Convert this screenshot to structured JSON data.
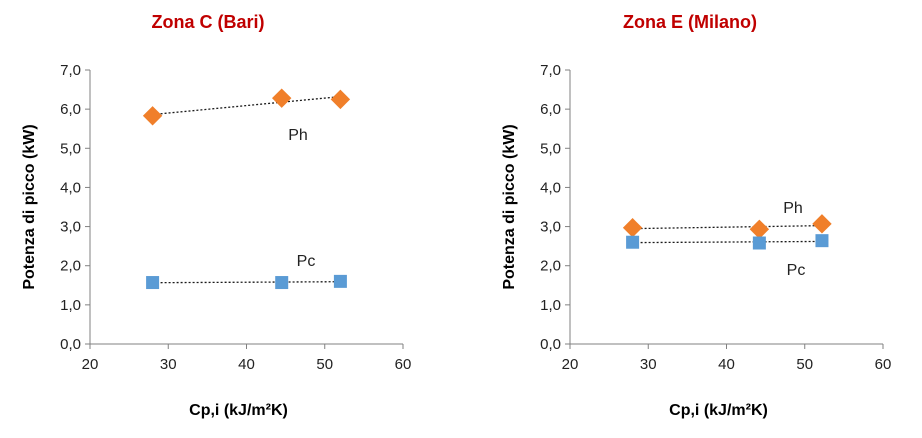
{
  "chart_data": [
    {
      "type": "scatter",
      "title": "Zona C (Bari)",
      "xlabel": "Cp,i  (kJ/m²K)",
      "ylabel": "Potenza di picco (kW)",
      "xlim": [
        20,
        60
      ],
      "ylim": [
        0,
        7
      ],
      "x_ticks": [
        "20",
        "30",
        "40",
        "50",
        "60"
      ],
      "y_ticks": [
        "0,0",
        "1,0",
        "2,0",
        "3,0",
        "4,0",
        "5,0",
        "6,0",
        "7,0"
      ],
      "grid": false,
      "trendline": "linear",
      "series": [
        {
          "name": "Ph",
          "marker": "diamond",
          "color": "#f07f2a",
          "points": [
            {
              "x": 28,
              "y": 5.83
            },
            {
              "x": 44.5,
              "y": 6.28
            },
            {
              "x": 52,
              "y": 6.25
            }
          ]
        },
        {
          "name": "Pc",
          "marker": "square",
          "color": "#5a9bd5",
          "points": [
            {
              "x": 28,
              "y": 1.57
            },
            {
              "x": 44.5,
              "y": 1.57
            },
            {
              "x": 52,
              "y": 1.6
            }
          ]
        }
      ]
    },
    {
      "type": "scatter",
      "title": "Zona E (Milano)",
      "xlabel": "Cp,i  (kJ/m²K)",
      "ylabel": "Potenza di picco (kW)",
      "xlim": [
        20,
        60
      ],
      "ylim": [
        0,
        7
      ],
      "x_ticks": [
        "20",
        "30",
        "40",
        "50",
        "60"
      ],
      "y_ticks": [
        "0,0",
        "1,0",
        "2,0",
        "3,0",
        "4,0",
        "5,0",
        "6,0",
        "7,0"
      ],
      "grid": false,
      "trendline": "linear",
      "series": [
        {
          "name": "Ph",
          "marker": "diamond",
          "color": "#f07f2a",
          "points": [
            {
              "x": 28,
              "y": 2.97
            },
            {
              "x": 44.2,
              "y": 2.93
            },
            {
              "x": 52.2,
              "y": 3.07
            }
          ]
        },
        {
          "name": "Pc",
          "marker": "square",
          "color": "#5a9bd5",
          "points": [
            {
              "x": 28,
              "y": 2.6
            },
            {
              "x": 44.2,
              "y": 2.58
            },
            {
              "x": 52.2,
              "y": 2.64
            }
          ]
        }
      ]
    }
  ]
}
